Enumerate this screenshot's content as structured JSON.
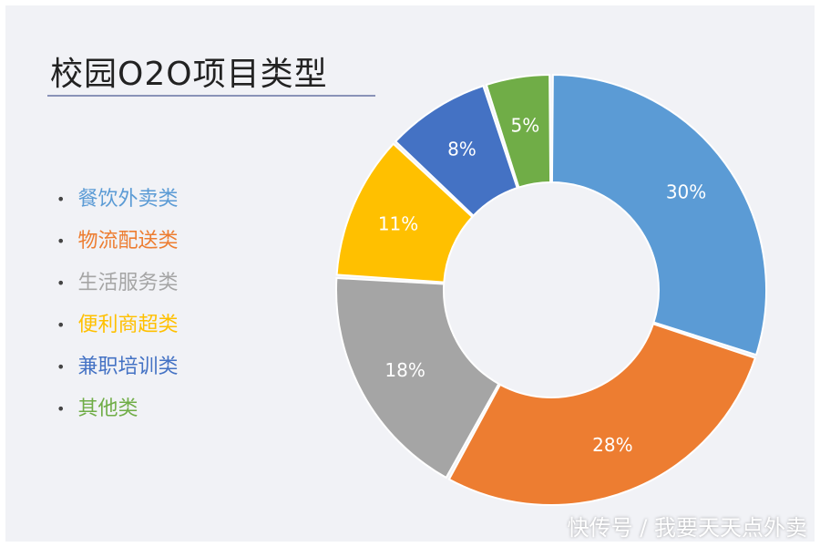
{
  "title": "校园O2O项目类型",
  "watermark": "快传号 / 我要天天点外卖",
  "chart_data": {
    "type": "pie",
    "donut": true,
    "title": "校园O2O项目类型",
    "legend_position": "left",
    "series": [
      {
        "name": "餐饮外卖类",
        "value": 30,
        "label": "30%",
        "color": "#5b9bd5"
      },
      {
        "name": "物流配送类",
        "value": 28,
        "label": "28%",
        "color": "#ed7d31"
      },
      {
        "name": "生活服务类",
        "value": 18,
        "label": "18%",
        "color": "#a5a5a5"
      },
      {
        "name": "便利商超类",
        "value": 11,
        "label": "11%",
        "color": "#ffc000"
      },
      {
        "name": "兼职培训类",
        "value": 8,
        "label": "8%",
        "color": "#4472c4"
      },
      {
        "name": "其他类",
        "value": 5,
        "label": "5%",
        "color": "#70ad47"
      }
    ]
  }
}
